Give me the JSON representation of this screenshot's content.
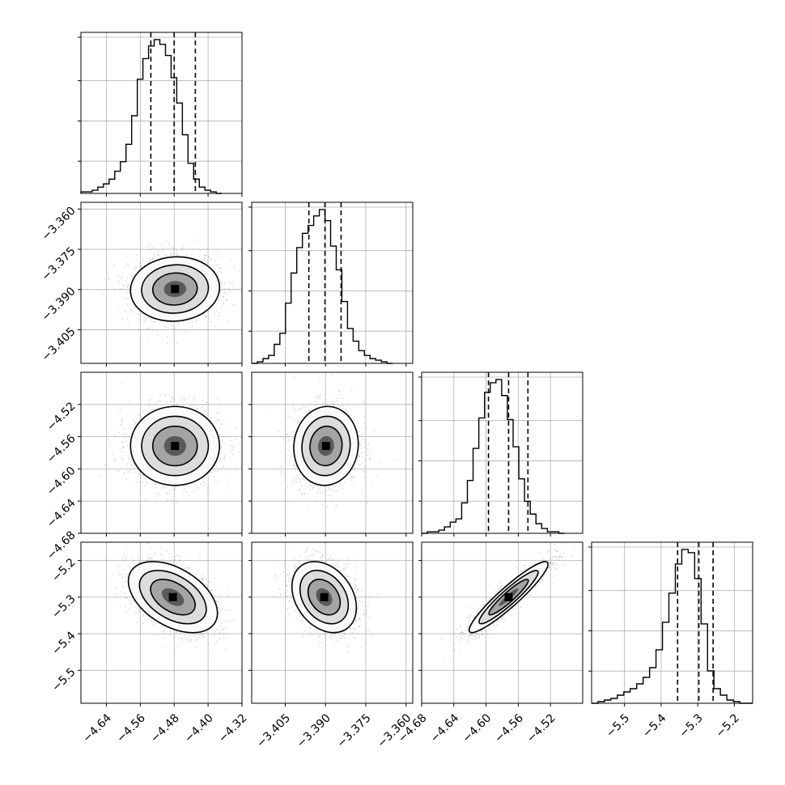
{
  "chart_data": {
    "type": "corner",
    "title": "",
    "grid": true,
    "parameters": [
      {
        "range": [
          -4.7,
          -4.32
        ],
        "ticks": [
          "−4.64",
          "−4.56",
          "−4.48",
          "−4.40",
          "−4.32"
        ],
        "tick_values": [
          -4.64,
          -4.56,
          -4.48,
          -4.4,
          -4.32
        ],
        "quantiles": [
          -4.535,
          -4.48,
          -4.43
        ],
        "hist": {
          "start": -4.7,
          "bin_width": 0.0133,
          "counts": [
            1,
            1,
            2,
            4,
            6,
            9,
            14,
            20,
            31,
            49,
            72,
            85,
            93,
            97,
            94,
            87,
            73,
            57,
            37,
            19,
            9,
            4,
            2,
            1,
            0
          ]
        }
      },
      {
        "range": [
          -3.4175,
          -3.3575
        ],
        "ticks": [
          "−3.405",
          "−3.390",
          "−3.375",
          "−3.360"
        ],
        "tick_values": [
          -3.405,
          -3.39,
          -3.375,
          -3.36
        ],
        "quantiles": [
          -3.3962,
          -3.3902,
          -3.3842
        ],
        "hist": {
          "start": -3.4175,
          "bin_width": 0.0021,
          "counts": [
            0,
            1,
            3,
            5,
            12,
            19,
            38,
            57,
            73,
            82,
            87,
            93,
            97,
            90,
            74,
            59,
            39,
            22,
            14,
            8,
            5,
            3,
            2,
            1,
            0
          ]
        }
      },
      {
        "range": [
          -4.68,
          -4.48
        ],
        "ticks": [
          "−4.68",
          "−4.64",
          "−4.60",
          "−4.56",
          "−4.52"
        ],
        "tick_values": [
          -4.68,
          -4.64,
          -4.6,
          -4.56,
          -4.52
        ],
        "quantiles": [
          -4.597,
          -4.572,
          -4.548
        ],
        "hist": {
          "start": -4.68,
          "bin_width": 0.0071,
          "counts": [
            0,
            1,
            1,
            2,
            4,
            7,
            9,
            19,
            33,
            53,
            72,
            88,
            94,
            96,
            86,
            71,
            54,
            34,
            20,
            12,
            6,
            3,
            1,
            1,
            0
          ]
        }
      },
      {
        "range": [
          -5.59,
          -5.15
        ],
        "ticks": [
          "−5.5",
          "−5.4",
          "−5.3",
          "−5.2"
        ],
        "tick_values": [
          -5.5,
          -5.4,
          -5.3,
          -5.2
        ],
        "quantiles": [
          -5.355,
          -5.297,
          -5.258
        ],
        "hist": {
          "start": -5.59,
          "bin_width": 0.0176,
          "counts": [
            0,
            1,
            2,
            3,
            5,
            7,
            9,
            12,
            16,
            22,
            33,
            50,
            68,
            86,
            95,
            93,
            77,
            49,
            20,
            9,
            5,
            2,
            1,
            0,
            0
          ]
        }
      }
    ],
    "pairs": [
      {
        "row": 1,
        "col": 0,
        "mean": [
          -4.478,
          -3.3898
        ],
        "corr": 0.05
      },
      {
        "row": 2,
        "col": 0,
        "mean": [
          -4.478,
          -4.5715
        ],
        "corr": 0.0
      },
      {
        "row": 2,
        "col": 1,
        "mean": [
          -3.3898,
          -4.5715
        ],
        "corr": 0.05
      },
      {
        "row": 3,
        "col": 0,
        "mean": [
          -4.483,
          -5.3
        ],
        "corr": -0.45
      },
      {
        "row": 3,
        "col": 1,
        "mean": [
          -3.3905,
          -5.3
        ],
        "corr": -0.3
      },
      {
        "row": 3,
        "col": 2,
        "mean": [
          -4.572,
          -5.3
        ],
        "corr": 0.93
      }
    ],
    "colors": {
      "line": "#000000",
      "grid": "#b0b0b0",
      "scatter": "#9a9a9a",
      "density_light": "#f0f0f0",
      "density_dark": "#000000"
    }
  }
}
